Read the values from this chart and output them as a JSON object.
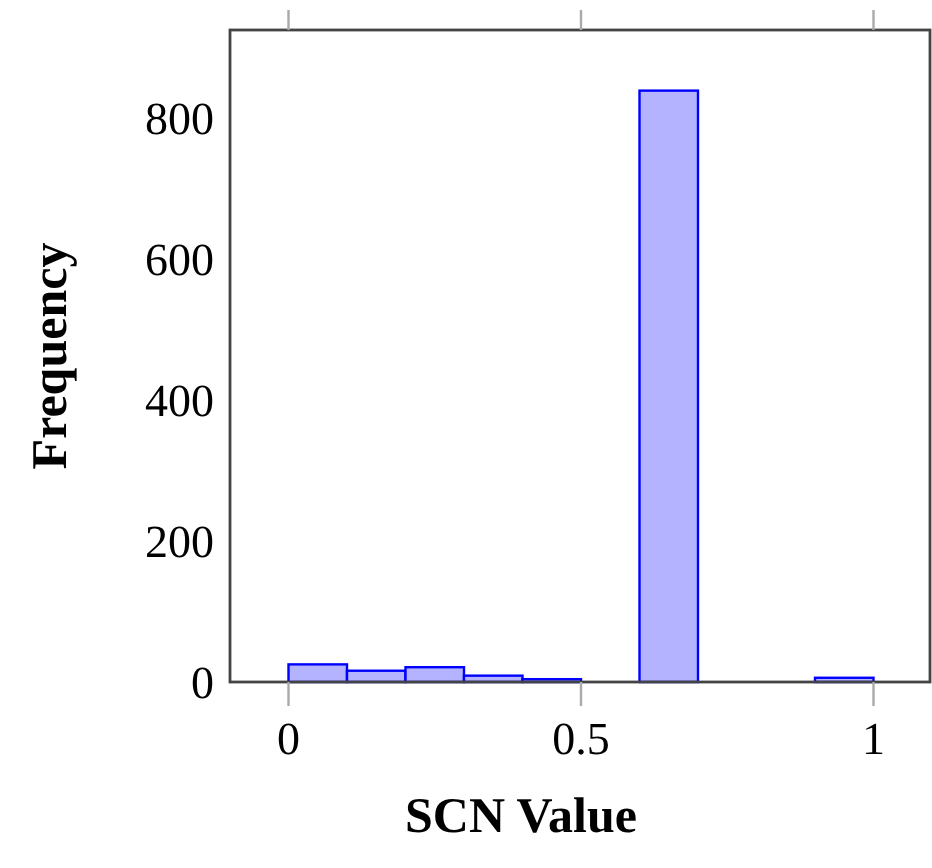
{
  "chart_data": {
    "type": "histogram",
    "xlabel": "SCN Value",
    "ylabel": "Frequency",
    "bins": [
      0,
      0.1,
      0.2,
      0.3,
      0.4,
      0.5,
      0.6,
      0.7,
      0.8,
      0.9,
      1
    ],
    "values": [
      25,
      16,
      21,
      9,
      4,
      null,
      839,
      0,
      0,
      6
    ],
    "color": "#b3b3ff",
    "xlim": [
      -0.1,
      1.1
    ],
    "ylim": [
      0,
      925
    ],
    "xticks": [
      0,
      0.5,
      1
    ],
    "yticks": [
      0,
      200,
      400,
      600,
      800
    ],
    "grid": false
  }
}
